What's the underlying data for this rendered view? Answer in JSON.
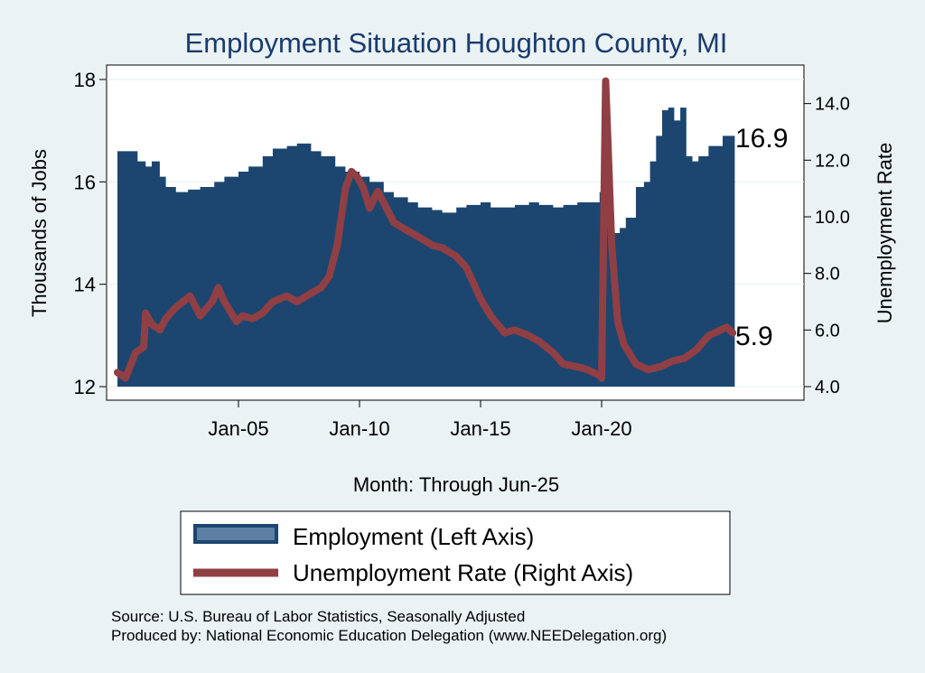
{
  "chart_data": {
    "type": "bar+line",
    "title": "Employment Situation Houghton  County, MI",
    "xlabel": "Month: Through Jun-25",
    "ylabel_left": "Thousands of Jobs",
    "ylabel_right": "Unemployment Rate",
    "x_range": [
      "2000-01",
      "2025-06"
    ],
    "x_ticks": [
      {
        "date": "2005-01",
        "label": "Jan-05"
      },
      {
        "date": "2010-01",
        "label": "Jan-10"
      },
      {
        "date": "2015-01",
        "label": "Jan-15"
      },
      {
        "date": "2020-01",
        "label": "Jan-20"
      }
    ],
    "y_left": {
      "min": 12,
      "max": 18,
      "ticks": [
        "12",
        "14",
        "16",
        "18"
      ]
    },
    "y_right": {
      "min": 4,
      "max": 14.85,
      "ticks": [
        "4.0",
        "6.0",
        "8.0",
        "10.0",
        "12.0",
        "14.0"
      ]
    },
    "grid": true,
    "legend_placement": "bottom",
    "colors": {
      "employment": "#1c4670",
      "unemployment": "#903f44",
      "title": "#1a3b6e",
      "background": "#eaf2f3",
      "plot_bg": "#ffffff"
    },
    "series": [
      {
        "name": "Employment (Left Axis)",
        "axis": "left",
        "kind": "bar",
        "points": [
          [
            "2000-01",
            16.6
          ],
          [
            "2000-10",
            16.6
          ],
          [
            "2000-11",
            16.4
          ],
          [
            "2001-03",
            16.3
          ],
          [
            "2001-06",
            16.4
          ],
          [
            "2001-10",
            16.1
          ],
          [
            "2002-01",
            15.9
          ],
          [
            "2002-06",
            15.8
          ],
          [
            "2002-12",
            15.85
          ],
          [
            "2003-06",
            15.9
          ],
          [
            "2004-01",
            16.0
          ],
          [
            "2004-06",
            16.1
          ],
          [
            "2005-01",
            16.2
          ],
          [
            "2005-06",
            16.3
          ],
          [
            "2006-01",
            16.5
          ],
          [
            "2006-06",
            16.65
          ],
          [
            "2007-01",
            16.7
          ],
          [
            "2007-06",
            16.75
          ],
          [
            "2008-01",
            16.6
          ],
          [
            "2008-06",
            16.5
          ],
          [
            "2009-01",
            16.3
          ],
          [
            "2009-06",
            16.2
          ],
          [
            "2010-01",
            16.1
          ],
          [
            "2010-06",
            16.0
          ],
          [
            "2011-01",
            15.8
          ],
          [
            "2011-06",
            15.7
          ],
          [
            "2012-01",
            15.6
          ],
          [
            "2012-06",
            15.5
          ],
          [
            "2013-01",
            15.45
          ],
          [
            "2013-06",
            15.4
          ],
          [
            "2014-01",
            15.5
          ],
          [
            "2014-06",
            15.55
          ],
          [
            "2015-01",
            15.6
          ],
          [
            "2015-06",
            15.5
          ],
          [
            "2016-01",
            15.5
          ],
          [
            "2016-06",
            15.55
          ],
          [
            "2017-01",
            15.6
          ],
          [
            "2017-06",
            15.55
          ],
          [
            "2018-01",
            15.5
          ],
          [
            "2018-06",
            15.55
          ],
          [
            "2019-01",
            15.6
          ],
          [
            "2019-06",
            15.6
          ],
          [
            "2019-12",
            15.8
          ],
          [
            "2020-02",
            16.0
          ],
          [
            "2020-04",
            15.3
          ],
          [
            "2020-07",
            15.0
          ],
          [
            "2020-10",
            15.1
          ],
          [
            "2021-01",
            15.3
          ],
          [
            "2021-06",
            15.9
          ],
          [
            "2021-10",
            16.0
          ],
          [
            "2022-01",
            16.4
          ],
          [
            "2022-04",
            16.9
          ],
          [
            "2022-07",
            17.4
          ],
          [
            "2022-10",
            17.45
          ],
          [
            "2023-01",
            17.2
          ],
          [
            "2023-04",
            17.45
          ],
          [
            "2023-07",
            16.5
          ],
          [
            "2023-10",
            16.4
          ],
          [
            "2024-01",
            16.5
          ],
          [
            "2024-06",
            16.7
          ],
          [
            "2025-01",
            16.9
          ],
          [
            "2025-06",
            16.9
          ]
        ],
        "end_label": "16.9"
      },
      {
        "name": "Unemployment Rate (Right Axis)",
        "axis": "right",
        "kind": "line",
        "points": [
          [
            "2000-01",
            4.5
          ],
          [
            "2000-05",
            4.3
          ],
          [
            "2000-10",
            5.2
          ],
          [
            "2001-02",
            5.4
          ],
          [
            "2001-03",
            6.6
          ],
          [
            "2001-06",
            6.2
          ],
          [
            "2001-10",
            6.0
          ],
          [
            "2002-01",
            6.4
          ],
          [
            "2002-06",
            6.8
          ],
          [
            "2003-01",
            7.2
          ],
          [
            "2003-06",
            6.5
          ],
          [
            "2003-12",
            7.0
          ],
          [
            "2004-03",
            7.5
          ],
          [
            "2004-06",
            7.0
          ],
          [
            "2004-12",
            6.3
          ],
          [
            "2005-03",
            6.5
          ],
          [
            "2005-08",
            6.4
          ],
          [
            "2006-01",
            6.6
          ],
          [
            "2006-06",
            7.0
          ],
          [
            "2007-01",
            7.2
          ],
          [
            "2007-06",
            7.0
          ],
          [
            "2008-01",
            7.3
          ],
          [
            "2008-06",
            7.5
          ],
          [
            "2008-10",
            7.9
          ],
          [
            "2009-02",
            9.0
          ],
          [
            "2009-06",
            11.0
          ],
          [
            "2009-09",
            11.6
          ],
          [
            "2009-12",
            11.4
          ],
          [
            "2010-03",
            11.0
          ],
          [
            "2010-06",
            10.3
          ],
          [
            "2010-10",
            10.9
          ],
          [
            "2011-01",
            10.5
          ],
          [
            "2011-06",
            9.8
          ],
          [
            "2012-01",
            9.5
          ],
          [
            "2012-06",
            9.3
          ],
          [
            "2013-01",
            9.0
          ],
          [
            "2013-06",
            8.9
          ],
          [
            "2014-01",
            8.6
          ],
          [
            "2014-06",
            8.2
          ],
          [
            "2015-01",
            7.1
          ],
          [
            "2015-06",
            6.5
          ],
          [
            "2016-01",
            5.9
          ],
          [
            "2016-06",
            6.0
          ],
          [
            "2017-01",
            5.8
          ],
          [
            "2017-06",
            5.6
          ],
          [
            "2018-01",
            5.2
          ],
          [
            "2018-06",
            4.8
          ],
          [
            "2019-01",
            4.7
          ],
          [
            "2019-06",
            4.6
          ],
          [
            "2019-12",
            4.4
          ],
          [
            "2020-01",
            4.3
          ],
          [
            "2020-03",
            14.8
          ],
          [
            "2020-06",
            9.0
          ],
          [
            "2020-09",
            6.3
          ],
          [
            "2020-12",
            5.5
          ],
          [
            "2021-06",
            4.8
          ],
          [
            "2021-12",
            4.6
          ],
          [
            "2022-06",
            4.7
          ],
          [
            "2022-12",
            4.9
          ],
          [
            "2023-06",
            5.0
          ],
          [
            "2023-12",
            5.3
          ],
          [
            "2024-06",
            5.8
          ],
          [
            "2024-12",
            6.0
          ],
          [
            "2025-03",
            6.1
          ],
          [
            "2025-06",
            5.9
          ]
        ],
        "end_label": "5.9"
      }
    ],
    "source_lines": [
      "Source: U.S. Bureau of Labor Statistics, Seasonally Adjusted",
      "Produced by: National Economic Education Delegation (www.NEEDelegation.org)"
    ]
  }
}
